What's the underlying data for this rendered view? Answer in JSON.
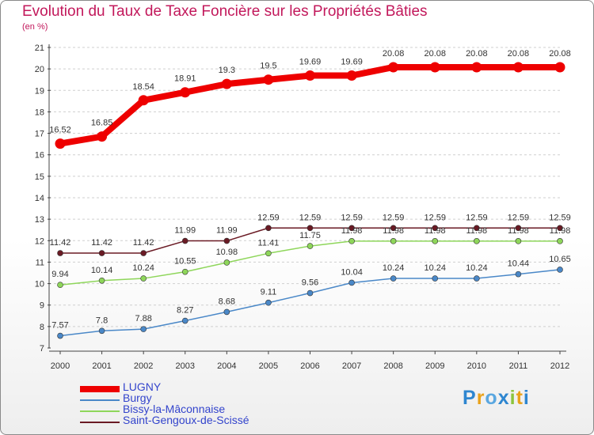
{
  "title": "Evolution du Taux de Taxe Foncière sur les Propriétés Bâties",
  "subtitle": "(en %)",
  "logo": {
    "p": "P",
    "r": "r",
    "o": "o",
    "x": "x",
    "i": "i",
    "t": "t",
    "i2": "i"
  },
  "chart_data": {
    "type": "line",
    "title": "Evolution du Taux de Taxe Foncière sur les Propriétés Bâties",
    "ylabel": "(en %)",
    "xlabel": "",
    "x": [
      2000,
      2001,
      2002,
      2003,
      2004,
      2005,
      2006,
      2007,
      2008,
      2009,
      2010,
      2011,
      2012
    ],
    "ylim": [
      7,
      21
    ],
    "yticks": [
      7,
      8,
      9,
      10,
      11,
      12,
      13,
      14,
      15,
      16,
      17,
      18,
      19,
      20,
      21
    ],
    "legend_position": "bottom-left",
    "series": [
      {
        "name": "LUGNY",
        "color": "#ee0000",
        "values": [
          16.52,
          16.85,
          18.54,
          18.91,
          19.3,
          19.5,
          19.69,
          19.69,
          20.08,
          20.08,
          20.08,
          20.08,
          20.08
        ],
        "labels": [
          "16.52",
          "16.85",
          "18.54",
          "18.91",
          "19.3",
          "19.5",
          "19.69",
          "19.69",
          "20.08",
          "20.08",
          "20.08",
          "20.08",
          "20.08"
        ]
      },
      {
        "name": "Burgy",
        "color": "#4a88c8",
        "values": [
          7.57,
          7.8,
          7.88,
          8.27,
          8.68,
          9.11,
          9.56,
          10.04,
          10.24,
          10.24,
          10.24,
          10.44,
          10.65
        ],
        "labels": [
          "7.57",
          "7.8",
          "7.88",
          "8.27",
          "8.68",
          "9.11",
          "9.56",
          "10.04",
          "10.24",
          "10.24",
          "10.24",
          "10.44",
          "10.65"
        ]
      },
      {
        "name": "Bissy-la-Mâconnaise",
        "color": "#8ed65a",
        "values": [
          9.94,
          10.14,
          10.24,
          10.55,
          10.98,
          11.41,
          11.75,
          11.98,
          11.98,
          11.98,
          11.98,
          11.98,
          11.98
        ],
        "labels": [
          "9.94",
          "10.14",
          "10.24",
          "10.55",
          "10.98",
          "11.41",
          "11.75",
          "11.98",
          "11.98",
          "11.98",
          "11.98",
          "11.98",
          "11.98"
        ]
      },
      {
        "name": "Saint-Gengoux-de-Scissé",
        "color": "#6a1a24",
        "values": [
          11.42,
          11.42,
          11.42,
          11.99,
          11.99,
          12.59,
          12.59,
          12.59,
          12.59,
          12.59,
          12.59,
          12.59,
          12.59
        ],
        "labels": [
          "11.42",
          "11.42",
          "11.42",
          "11.99",
          "11.99",
          "12.59",
          "12.59",
          "12.59",
          "12.59",
          "12.59",
          "12.59",
          "12.59",
          "12.59"
        ]
      }
    ]
  }
}
